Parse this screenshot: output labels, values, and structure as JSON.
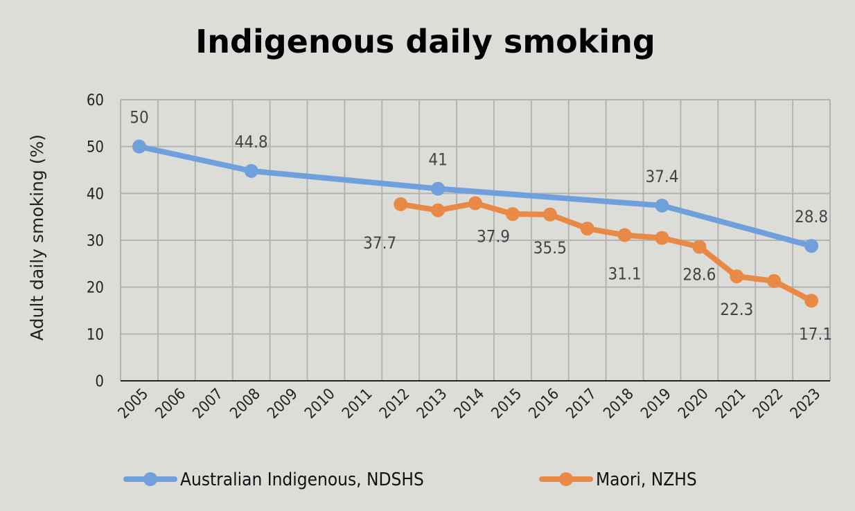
{
  "chart_data": {
    "type": "line",
    "title": "Indigenous daily smoking",
    "ylabel": "Adult daily smoking (%)",
    "xlabel": "",
    "ylim": [
      0,
      60
    ],
    "yticks": [
      "0",
      "10",
      "20",
      "30",
      "40",
      "50",
      "60"
    ],
    "categories": [
      "2005",
      "2006",
      "2007",
      "2008",
      "2009",
      "2010",
      "2011",
      "2012",
      "2013",
      "2014",
      "2015",
      "2016",
      "2017",
      "2018",
      "2019",
      "2020",
      "2021",
      "2022",
      "2023"
    ],
    "grid": true,
    "legend_position": "bottom",
    "series": [
      {
        "name": "Australian Indigenous, NDSHS",
        "color": "#6fa0dc",
        "points": [
          {
            "x": "2005",
            "y": 50,
            "label": "50"
          },
          {
            "x": "2008",
            "y": 44.8,
            "label": "44.8"
          },
          {
            "x": "2013",
            "y": 41,
            "label": "41"
          },
          {
            "x": "2019",
            "y": 37.4,
            "label": "37.4"
          },
          {
            "x": "2023",
            "y": 28.8,
            "label": "28.8"
          }
        ]
      },
      {
        "name": "Maori, NZHS",
        "color": "#e88a45",
        "points": [
          {
            "x": "2012",
            "y": 37.7,
            "label": "37.7"
          },
          {
            "x": "2013",
            "y": 36.4,
            "label": ""
          },
          {
            "x": "2014",
            "y": 37.9,
            "label": "37.9"
          },
          {
            "x": "2015",
            "y": 35.6,
            "label": ""
          },
          {
            "x": "2016",
            "y": 35.5,
            "label": "35.5"
          },
          {
            "x": "2017",
            "y": 32.5,
            "label": ""
          },
          {
            "x": "2018",
            "y": 31.1,
            "label": "31.1"
          },
          {
            "x": "2019",
            "y": 30.5,
            "label": ""
          },
          {
            "x": "2020",
            "y": 28.6,
            "label": "28.6"
          },
          {
            "x": "2021",
            "y": 22.3,
            "label": "22.3"
          },
          {
            "x": "2022",
            "y": 21.3,
            "label": ""
          },
          {
            "x": "2023",
            "y": 17.1,
            "label": "17.1"
          }
        ]
      }
    ]
  }
}
